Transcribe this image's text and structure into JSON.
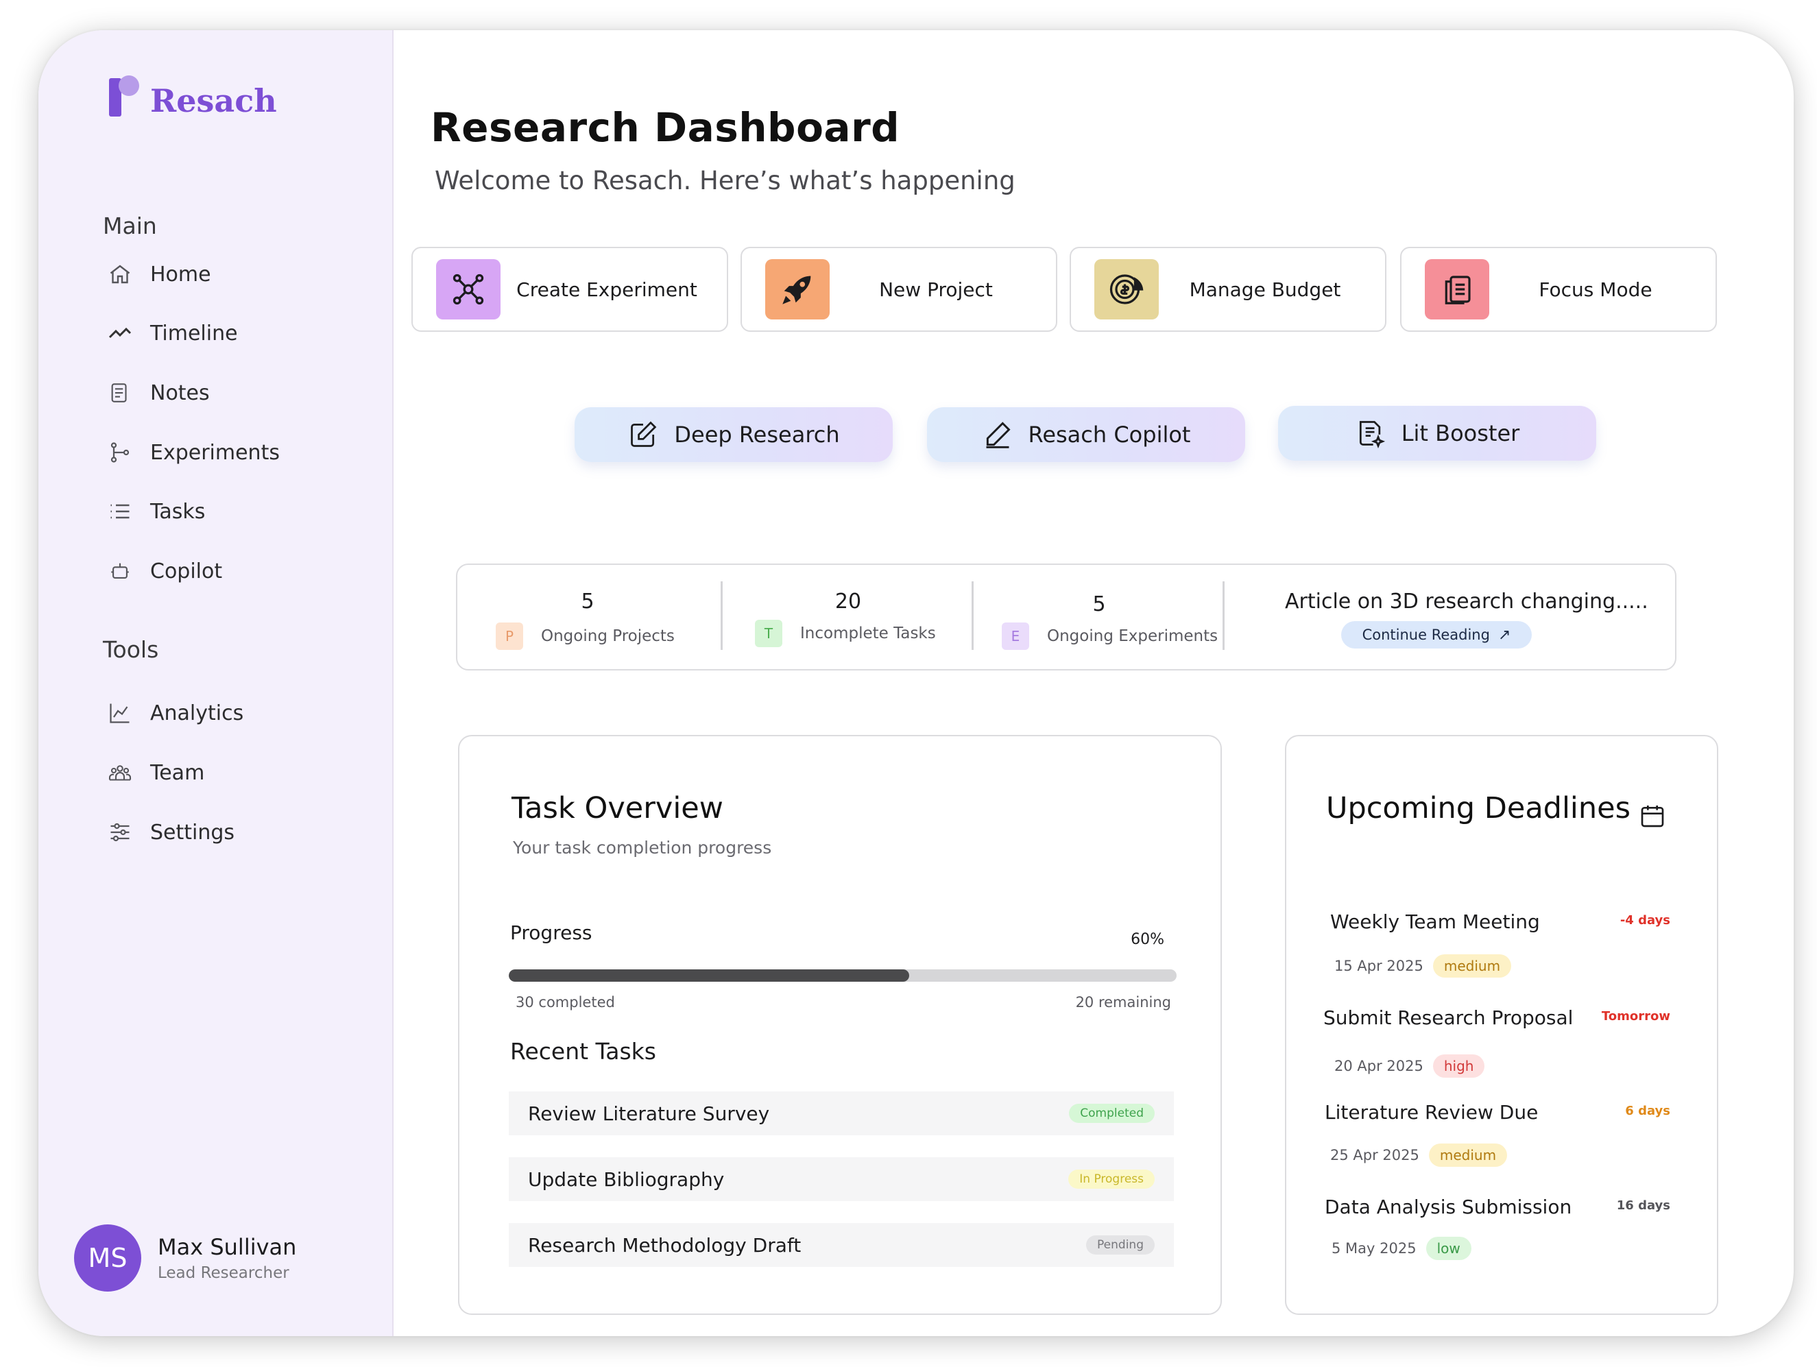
{
  "brand": {
    "name": "Resach",
    "accent": "#7d4fd5"
  },
  "sidebar": {
    "main_label": "Main",
    "main_items": [
      {
        "label": "Home",
        "icon": "home-icon"
      },
      {
        "label": "Timeline",
        "icon": "timeline-icon"
      },
      {
        "label": "Notes",
        "icon": "notes-icon"
      },
      {
        "label": "Experiments",
        "icon": "experiments-icon"
      },
      {
        "label": "Tasks",
        "icon": "tasks-icon"
      },
      {
        "label": "Copilot",
        "icon": "robot-icon"
      }
    ],
    "tools_label": "Tools",
    "tools_items": [
      {
        "label": "Analytics",
        "icon": "analytics-icon"
      },
      {
        "label": "Team",
        "icon": "team-icon"
      },
      {
        "label": "Settings",
        "icon": "settings-icon"
      }
    ]
  },
  "user": {
    "initials": "MS",
    "name": "Max Sullivan",
    "role": "Lead Researcher"
  },
  "header": {
    "title": "Research Dashboard",
    "subtitle": "Welcome to Resach. Here’s what’s happening"
  },
  "quick_actions": [
    {
      "label": "Create Experiment",
      "icon": "network-icon",
      "color": "#d7a6f5"
    },
    {
      "label": "New Project",
      "icon": "rocket-icon",
      "color": "#f6a774"
    },
    {
      "label": "Manage Budget",
      "icon": "coin-chart-icon",
      "color": "#e6d69a"
    },
    {
      "label": "Focus Mode",
      "icon": "documents-icon",
      "color": "#f58f98"
    }
  ],
  "ai_tools": [
    {
      "label": "Deep Research",
      "icon": "edit-square-icon"
    },
    {
      "label": "Resach Copilot",
      "icon": "pencil-icon"
    },
    {
      "label": "Lit Booster",
      "icon": "document-sparkle-icon"
    }
  ],
  "stats": [
    {
      "value": "5",
      "label": "Ongoing Projects",
      "badge": "P",
      "badge_bg": "#fde3d0",
      "badge_fg": "#e89a6a"
    },
    {
      "value": "20",
      "label": "Incomplete Tasks",
      "badge": "T",
      "badge_bg": "#d6f5d6",
      "badge_fg": "#4caf50"
    },
    {
      "value": "5",
      "label": "Ongoing Experiments",
      "badge": "E",
      "badge_bg": "#eadcfb",
      "badge_fg": "#a57be0"
    }
  ],
  "article": {
    "title": "Article on 3D research changing.....",
    "cta": "Continue Reading",
    "arrow": "↗"
  },
  "task_overview": {
    "title": "Task Overview",
    "subtitle": "Your task completion progress",
    "progress_label": "Progress",
    "progress_percent_text": "60%",
    "progress_fraction": 0.6,
    "completed_text": "30 completed",
    "remaining_text": "20 remaining",
    "recent_title": "Recent Tasks",
    "tasks": [
      {
        "name": "Review Literature Survey",
        "status": "Completed",
        "bg": "#d6f7d6",
        "fg": "#3fa34d"
      },
      {
        "name": "Update Bibliography",
        "status": "In Progress",
        "bg": "#fbf8c8",
        "fg": "#c9b72a"
      },
      {
        "name": "Research Methodology Draft",
        "status": "Pending",
        "bg": "#e4e4e6",
        "fg": "#77777c"
      }
    ]
  },
  "deadlines": {
    "title": "Upcoming Deadlines",
    "items": [
      {
        "name": "Weekly Team Meeting",
        "due": "-4 days",
        "due_color": "#e0322a",
        "date": "15 Apr 2025",
        "priority": "medium",
        "p_bg": "#fdf1c6",
        "p_fg": "#b07a10"
      },
      {
        "name": "Submit Research Proposal",
        "due": "Tomorrow",
        "due_color": "#e0322a",
        "date": "20 Apr 2025",
        "priority": "high",
        "p_bg": "#fde0e0",
        "p_fg": "#d23a3a"
      },
      {
        "name": "Literature Review Due",
        "due": "6 days",
        "due_color": "#e08a1a",
        "date": "25 Apr 2025",
        "priority": "medium",
        "p_bg": "#fdf1c6",
        "p_fg": "#b07a10"
      },
      {
        "name": "Data Analysis Submission",
        "due": "16 days",
        "due_color": "#55555a",
        "date": "5 May 2025",
        "priority": "low",
        "p_bg": "#dcf6dc",
        "p_fg": "#3a9a48"
      }
    ]
  }
}
